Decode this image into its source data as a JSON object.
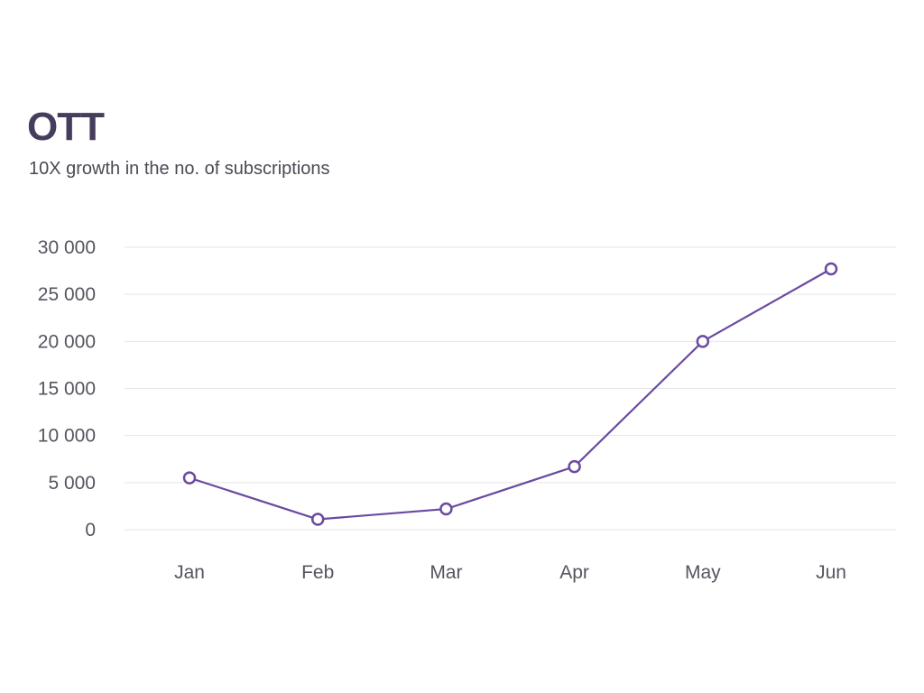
{
  "chart_data": {
    "type": "line",
    "title": "OTT",
    "subtitle": "10X growth in the no. of subscriptions",
    "categories": [
      "Jan",
      "Feb",
      "Mar",
      "Apr",
      "May",
      "Jun"
    ],
    "series": [
      {
        "name": "Subscriptions",
        "values": [
          5500,
          1100,
          2200,
          6700,
          20000,
          27700
        ],
        "color": "#6a4aa0"
      }
    ],
    "yticks": [
      0,
      5000,
      10000,
      15000,
      20000,
      25000,
      30000
    ],
    "ytick_labels": [
      "0",
      "5 000",
      "10 000",
      "15 000",
      "20 000",
      "25 000",
      "30 000"
    ],
    "ylim": [
      0,
      30000
    ],
    "xlabel": "",
    "ylabel": "",
    "grid": true,
    "legend": "none"
  }
}
